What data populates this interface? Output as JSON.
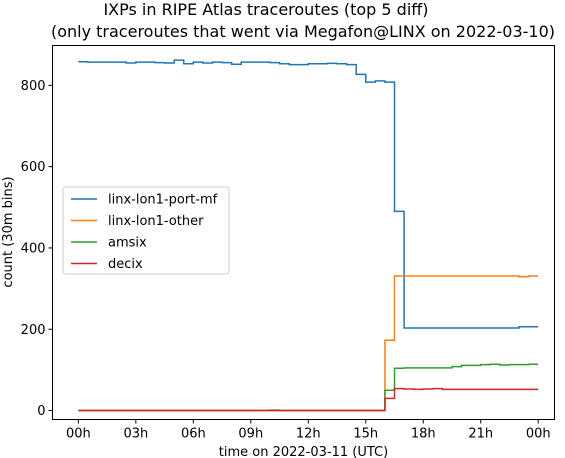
{
  "chart_data": {
    "type": "line",
    "title": "IXPs in RIPE Atlas traceroutes (top 5 diff)",
    "subtitle": "(only traceroutes that went via Megafon@LINX on 2022-03-10)",
    "xlabel": "time on 2022-03-11 (UTC)",
    "ylabel": "count (30m bins)",
    "x_ticks": [
      "00h",
      "03h",
      "06h",
      "09h",
      "12h",
      "15h",
      "18h",
      "21h",
      "00h"
    ],
    "x_tick_hours": [
      0,
      3,
      6,
      9,
      12,
      15,
      18,
      21,
      24
    ],
    "y_ticks": [
      0,
      200,
      400,
      600,
      800
    ],
    "xlim_hours": [
      -1.35,
      24.85
    ],
    "ylim": [
      -22,
      898
    ],
    "grid": false,
    "legend_position": "center-left",
    "drawstyle": "steps-post",
    "series": [
      {
        "name": "linx-lon1-port-mf",
        "color": "#1f77b4",
        "x_hours": [
          0,
          0.5,
          1,
          1.5,
          2,
          2.5,
          3,
          3.5,
          4,
          4.5,
          5,
          5.5,
          6,
          6.5,
          7,
          7.5,
          8,
          8.5,
          9,
          9.5,
          10,
          10.5,
          11,
          11.5,
          12,
          12.5,
          13,
          13.5,
          14,
          14.5,
          15,
          15.5,
          16,
          16.5,
          17,
          17.5,
          18,
          18.5,
          19,
          19.5,
          20,
          20.5,
          21,
          21.5,
          22,
          22.5,
          23,
          23.5
        ],
        "values": [
          858,
          857,
          857,
          857,
          857,
          855,
          857,
          857,
          856,
          855,
          862,
          853,
          857,
          855,
          857,
          856,
          852,
          857,
          857,
          857,
          856,
          853,
          851,
          851,
          853,
          853,
          854,
          853,
          851,
          827,
          808,
          811,
          808,
          490,
          203,
          203,
          203,
          203,
          203,
          203,
          203,
          203,
          203,
          203,
          203,
          203,
          206,
          206
        ]
      },
      {
        "name": "linx-lon1-other",
        "color": "#ff7f0e",
        "x_hours": [
          0,
          0.5,
          1,
          1.5,
          2,
          2.5,
          3,
          3.5,
          4,
          4.5,
          5,
          5.5,
          6,
          6.5,
          7,
          7.5,
          8,
          8.5,
          9,
          9.5,
          10,
          10.5,
          11,
          11.5,
          12,
          12.5,
          13,
          13.5,
          14,
          14.5,
          15,
          15.5,
          16,
          16.5,
          17,
          17.5,
          18,
          18.5,
          19,
          19.5,
          20,
          20.5,
          21,
          21.5,
          22,
          22.5,
          23,
          23.5
        ],
        "values": [
          0,
          0,
          0,
          0,
          0,
          0,
          0,
          0,
          0,
          0,
          0,
          0,
          0,
          0,
          0,
          0,
          0,
          0,
          0,
          0,
          0,
          0,
          0,
          0,
          0,
          0,
          0,
          0,
          0,
          0,
          0,
          0,
          173,
          331,
          331,
          331,
          331,
          331,
          331,
          331,
          331,
          331,
          331,
          331,
          331,
          331,
          329,
          331
        ]
      },
      {
        "name": "amsix",
        "color": "#2ca02c",
        "x_hours": [
          0,
          0.5,
          1,
          1.5,
          2,
          2.5,
          3,
          3.5,
          4,
          4.5,
          5,
          5.5,
          6,
          6.5,
          7,
          7.5,
          8,
          8.5,
          9,
          9.5,
          10,
          10.5,
          11,
          11.5,
          12,
          12.5,
          13,
          13.5,
          14,
          14.5,
          15,
          15.5,
          16,
          16.5,
          17,
          17.5,
          18,
          18.5,
          19,
          19.5,
          20,
          20.5,
          21,
          21.5,
          22,
          22.5,
          23,
          23.5
        ],
        "values": [
          0,
          0,
          0,
          0,
          0,
          0,
          0,
          0,
          0,
          0,
          0,
          0,
          0,
          0,
          0,
          0,
          0,
          0,
          0,
          0,
          1,
          0,
          0,
          0,
          0,
          0,
          0,
          0,
          0,
          0,
          0,
          0,
          50,
          104,
          105,
          105,
          105,
          105,
          105,
          108,
          111,
          111,
          113,
          114,
          112,
          113,
          113,
          114
        ]
      },
      {
        "name": "decix",
        "color": "#d62728",
        "x_hours": [
          0,
          0.5,
          1,
          1.5,
          2,
          2.5,
          3,
          3.5,
          4,
          4.5,
          5,
          5.5,
          6,
          6.5,
          7,
          7.5,
          8,
          8.5,
          9,
          9.5,
          10,
          10.5,
          11,
          11.5,
          12,
          12.5,
          13,
          13.5,
          14,
          14.5,
          15,
          15.5,
          16,
          16.5,
          17,
          17.5,
          18,
          18.5,
          19,
          19.5,
          20,
          20.5,
          21,
          21.5,
          22,
          22.5,
          23,
          23.5
        ],
        "values": [
          0,
          0,
          0,
          0,
          0,
          0,
          0,
          0,
          0,
          0,
          0,
          0,
          0,
          0,
          0,
          0,
          0,
          0,
          0,
          0,
          0,
          0,
          0,
          0,
          0,
          0,
          0,
          0,
          0,
          0,
          0,
          0,
          30,
          54,
          53,
          52,
          53,
          54,
          52,
          52,
          52,
          52,
          52,
          52,
          52,
          52,
          52,
          52
        ]
      }
    ]
  }
}
